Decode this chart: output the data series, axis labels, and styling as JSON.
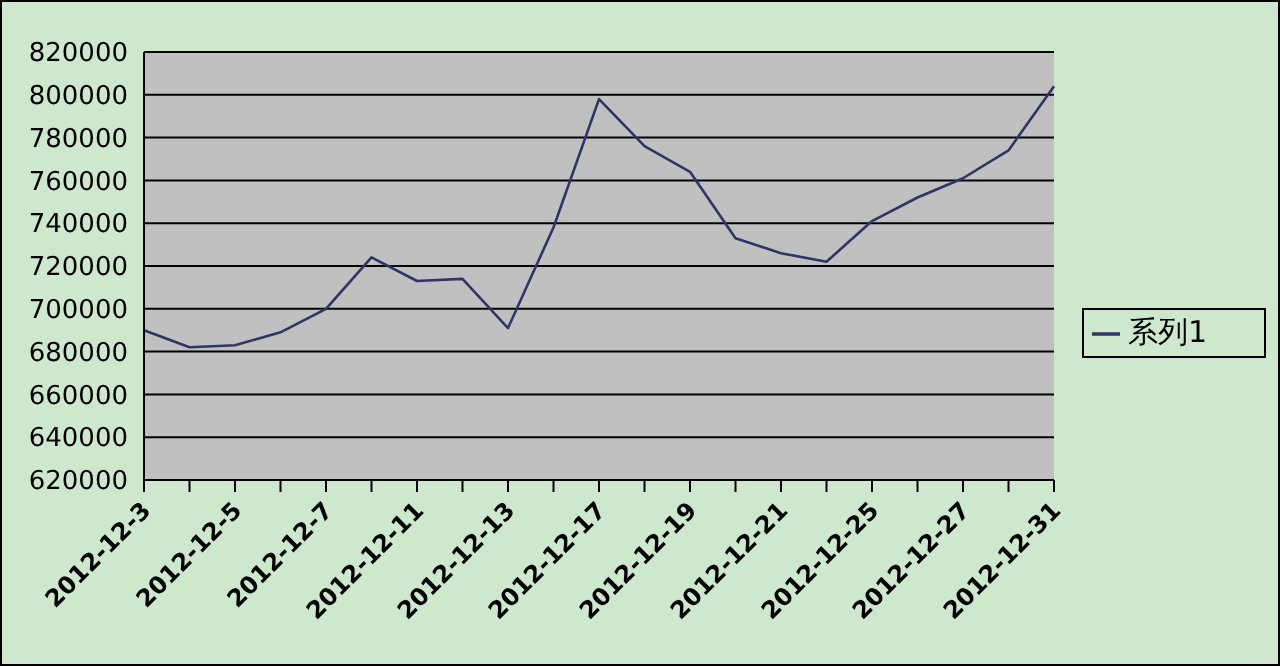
{
  "chart_data": {
    "type": "line",
    "categories": [
      "2012-12-3",
      null,
      "2012-12-5",
      null,
      "2012-12-7",
      null,
      "2012-12-11",
      null,
      "2012-12-13",
      null,
      "2012-12-17",
      null,
      "2012-12-19",
      null,
      "2012-12-21",
      null,
      "2012-12-25",
      null,
      "2012-12-27",
      null,
      "2012-12-31"
    ],
    "series": [
      {
        "name": "系列1",
        "color": "#333366",
        "values": [
          690000,
          682000,
          683000,
          689000,
          700000,
          724000,
          713000,
          714000,
          691000,
          738000,
          798000,
          776000,
          764000,
          733000,
          726000,
          722000,
          741000,
          752000,
          761000,
          774000,
          804000
        ]
      }
    ],
    "ylim": [
      620000,
      820000
    ],
    "yticks": [
      620000,
      640000,
      660000,
      680000,
      700000,
      720000,
      740000,
      760000,
      780000,
      800000,
      820000
    ],
    "grid": "y",
    "legend": "right",
    "marker": "none",
    "line_style": "solid"
  }
}
